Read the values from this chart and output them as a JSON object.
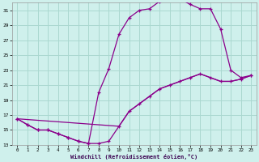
{
  "xlabel": "Windchill (Refroidissement éolien,°C)",
  "bg_color": "#cff0ec",
  "grid_color": "#aad8d0",
  "line_color": "#8b008b",
  "xlim": [
    -0.5,
    23.5
  ],
  "ylim": [
    13,
    32
  ],
  "xticks": [
    0,
    1,
    2,
    3,
    4,
    5,
    6,
    7,
    8,
    9,
    10,
    11,
    12,
    13,
    14,
    15,
    16,
    17,
    18,
    19,
    20,
    21,
    22,
    23
  ],
  "yticks": [
    13,
    15,
    17,
    19,
    21,
    23,
    25,
    27,
    29,
    31
  ],
  "curve1_x": [
    0,
    1,
    2,
    3,
    4,
    5,
    6,
    7,
    8,
    9,
    10,
    11,
    12,
    13,
    14,
    15,
    16,
    17,
    18,
    19,
    20,
    21,
    22,
    23
  ],
  "curve1_y": [
    16.5,
    15.7,
    15.0,
    15.0,
    14.5,
    14.0,
    13.5,
    13.2,
    13.2,
    13.5,
    15.5,
    17.5,
    18.5,
    19.5,
    20.5,
    21.0,
    21.5,
    22.0,
    22.5,
    22.0,
    21.5,
    21.5,
    21.8,
    22.3
  ],
  "curve2_x": [
    0,
    1,
    2,
    3,
    4,
    5,
    6,
    7,
    8,
    9,
    10,
    11,
    12,
    13,
    14,
    15,
    16,
    17,
    18,
    19,
    20,
    21,
    22,
    23
  ],
  "curve2_y": [
    16.5,
    15.7,
    15.0,
    15.0,
    14.5,
    14.0,
    13.5,
    13.2,
    20.0,
    23.2,
    27.8,
    30.0,
    31.0,
    31.2,
    32.2,
    32.5,
    32.5,
    31.8,
    31.2,
    31.2,
    28.5,
    23.0,
    22.0,
    22.3
  ],
  "curve3_x": [
    0,
    10,
    11,
    12,
    13,
    14,
    15,
    16,
    17,
    18,
    19,
    20,
    21,
    22,
    23
  ],
  "curve3_y": [
    16.5,
    15.5,
    17.5,
    18.5,
    19.5,
    20.5,
    21.0,
    21.5,
    22.0,
    22.5,
    22.0,
    21.5,
    21.5,
    21.8,
    22.3
  ]
}
